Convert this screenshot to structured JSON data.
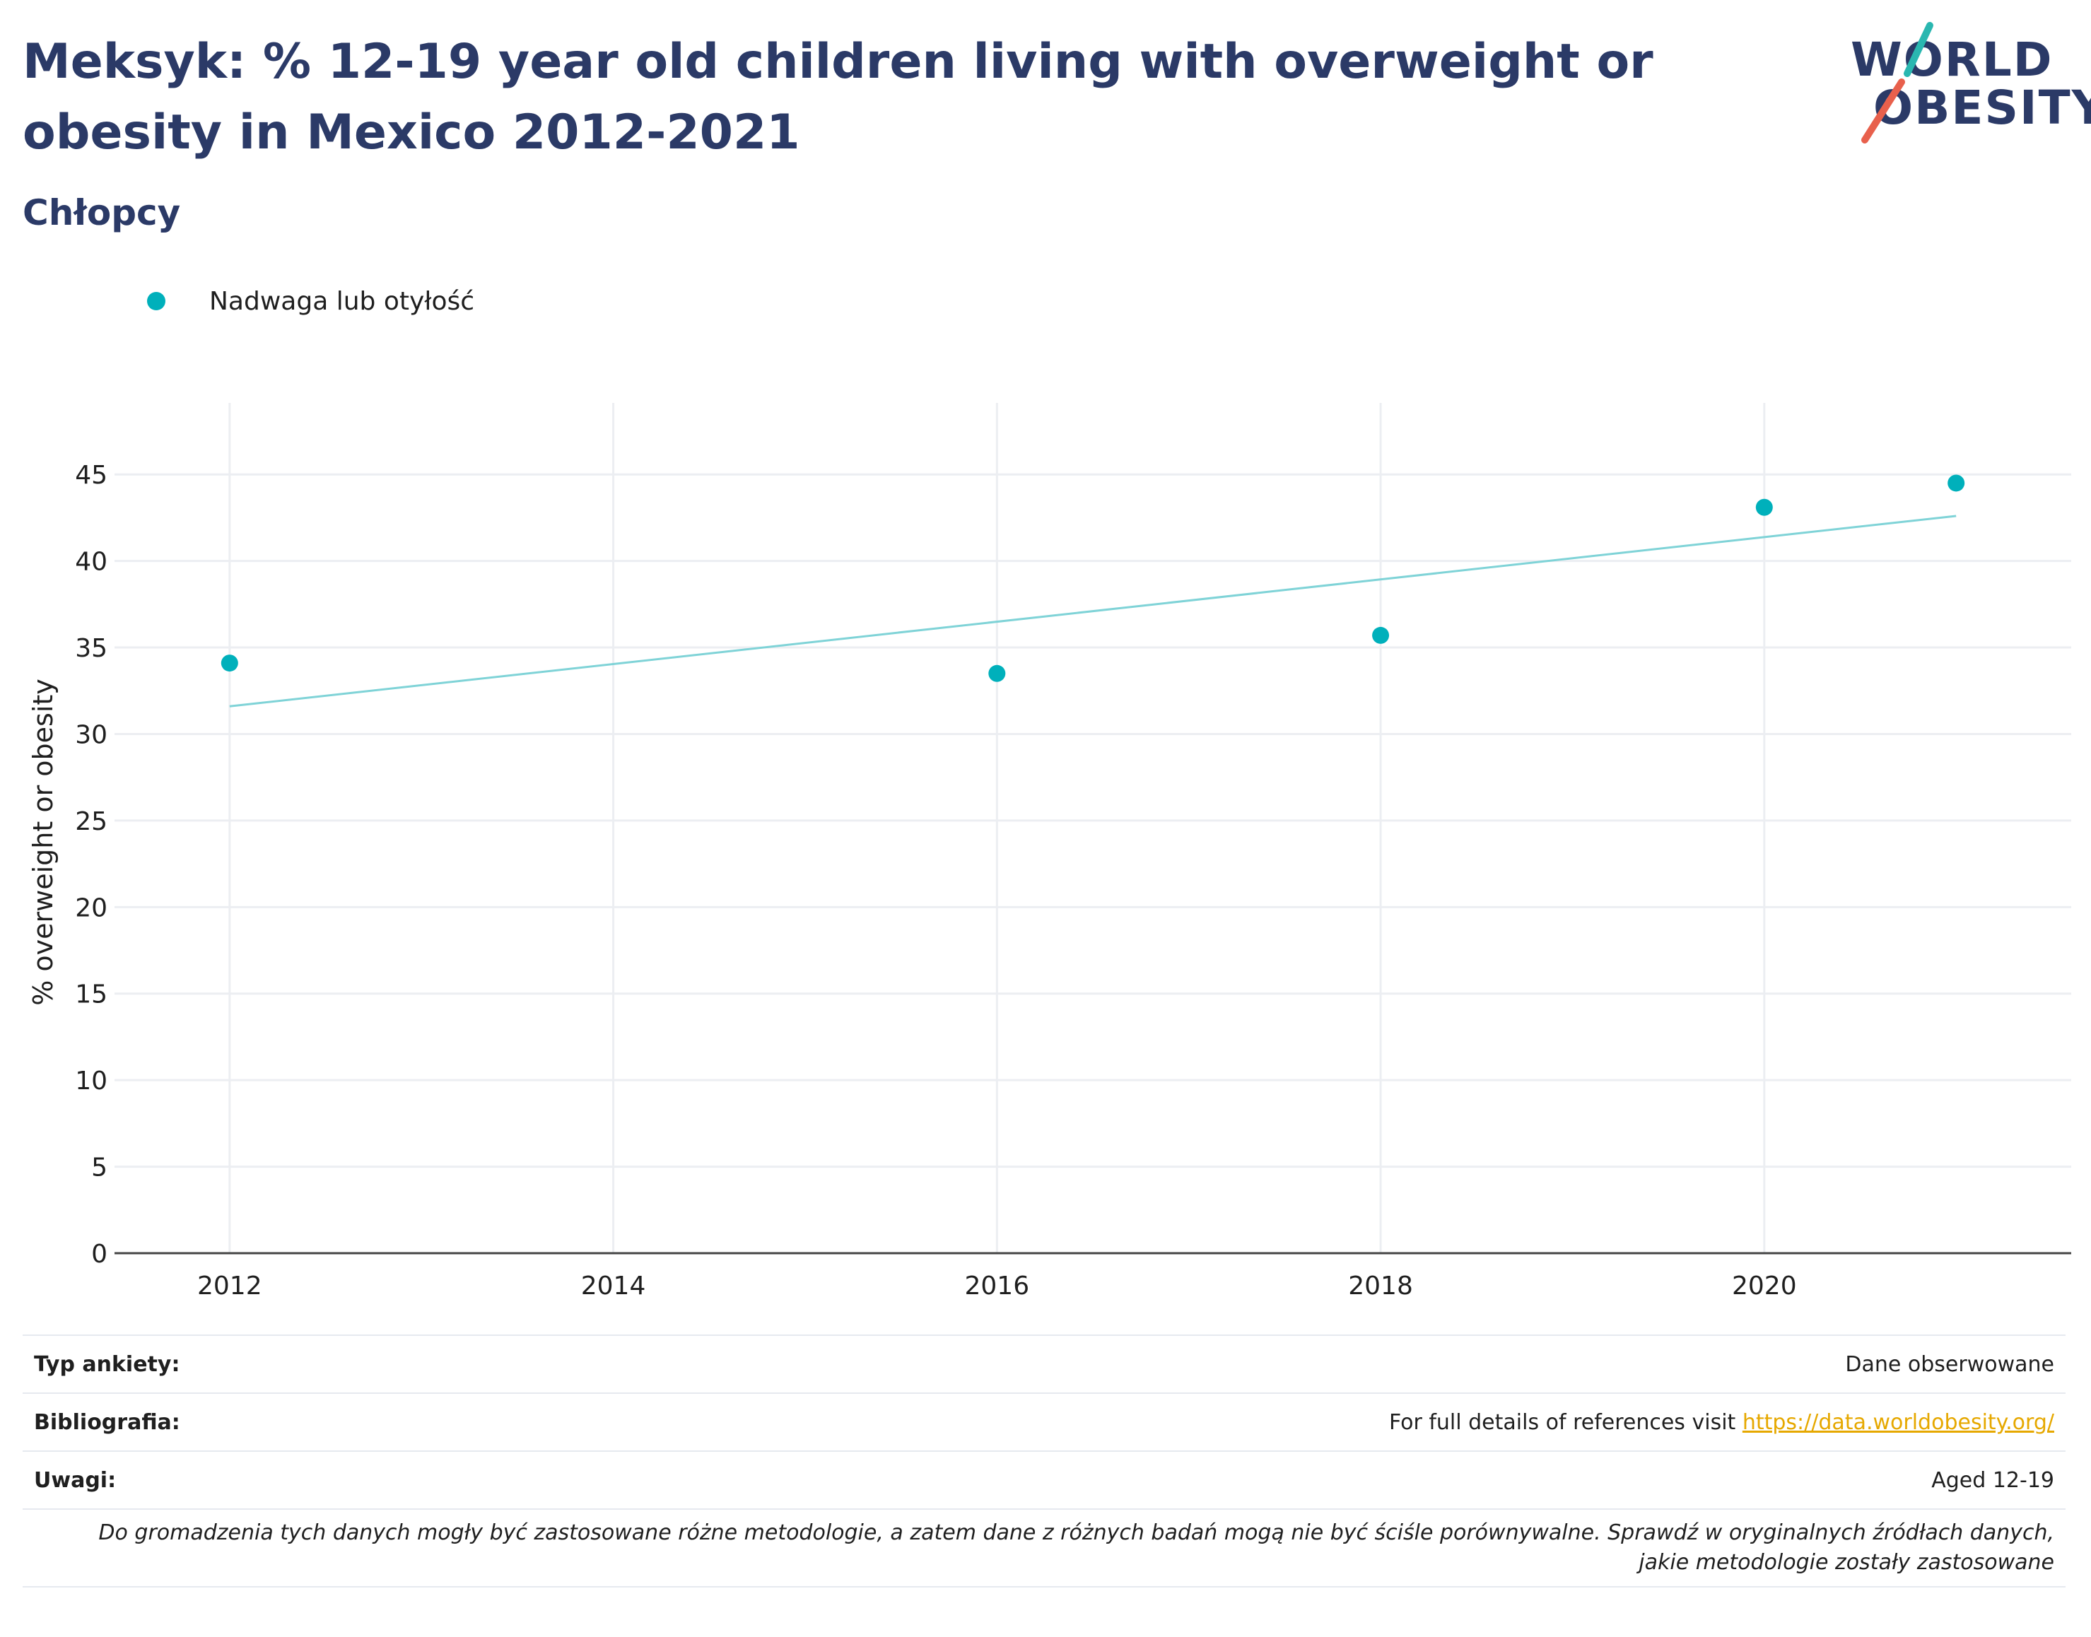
{
  "title": "Meksyk: % 12-19 year old children living with overweight or obesity in Mexico 2012-2021",
  "subtitle": "Chłopcy",
  "logo": {
    "line1": "WORLD",
    "line2": "OBESITY",
    "accent_teal": "#2ab7b0",
    "accent_red": "#e8604c"
  },
  "legend": {
    "label": "Nadwaga lub otyłość",
    "color": "#00b0bb"
  },
  "chart_data": {
    "type": "scatter",
    "xlabel": "",
    "ylabel": "% overweight or obesity",
    "x_ticks": [
      "2012",
      "2014",
      "2016",
      "2018",
      "2020"
    ],
    "y_ticks": [
      "0",
      "5",
      "10",
      "15",
      "20",
      "25",
      "30",
      "35",
      "40",
      "45"
    ],
    "xlim": [
      2011.4,
      2021.6
    ],
    "ylim": [
      0,
      47.5
    ],
    "grid": true,
    "legend_position": "top-left",
    "series": [
      {
        "name": "Nadwaga lub otyłość",
        "color": "#00b0bb",
        "x": [
          2012,
          2016,
          2018,
          2020,
          2021
        ],
        "y": [
          34.1,
          33.5,
          35.7,
          43.1,
          44.5
        ]
      }
    ],
    "trendline": {
      "color": "#7fd3d7",
      "x": [
        2012,
        2021
      ],
      "y": [
        31.6,
        42.6
      ]
    }
  },
  "info": {
    "survey_label": "Typ ankiety:",
    "survey_value": "Dane obserwowane",
    "bib_label": "Bibliografia:",
    "bib_text": "For full details of references visit ",
    "bib_link": "https://data.worldobesity.org/",
    "notes_label": "Uwagi:",
    "notes_value": "Aged 12-19",
    "disclaimer": "Do gromadzenia tych danych mogły być zastosowane różne metodologie, a zatem dane z różnych badań mogą nie być ściśle porównywalne. Sprawdź w oryginalnych źródłach danych, jakie metodologie zostały zastosowane"
  }
}
